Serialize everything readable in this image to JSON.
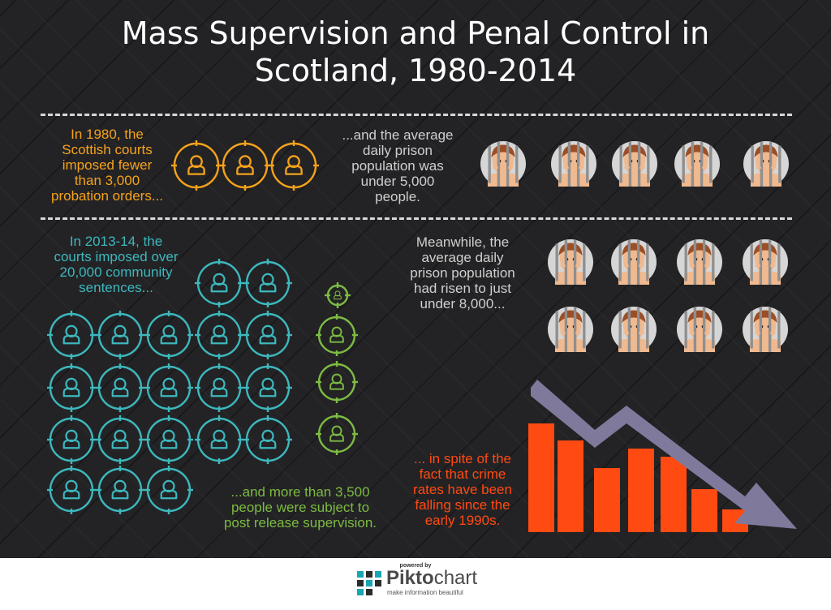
{
  "title": {
    "line1": "Mass Supervision and Penal Control in",
    "line2": "Scotland, 1980-2014"
  },
  "block_1980": {
    "line1": "In 1980, the",
    "line2": "Scottish courts",
    "line3": "imposed fewer",
    "line4": "than  3,000",
    "line5": "probation orders..."
  },
  "block_prison_1980": {
    "line1": "...and the average",
    "line2": "daily prison",
    "line3": "population was",
    "line4": "under 5,000",
    "line5": "people."
  },
  "block_2013": {
    "line1": "In 2013-14, the",
    "line2": "courts imposed over",
    "line3": "20,000 community",
    "line4": "sentences..."
  },
  "block_prison_2013": {
    "line1": "Meanwhile, the",
    "line2": "average daily",
    "line3": "prison population",
    "line4": "had risen to just",
    "line5": "under 8,000..."
  },
  "block_release": {
    "line1": "...and more than 3,500",
    "line2": "people were subject to",
    "line3": "post release supervision."
  },
  "block_crime": {
    "line1": "... in spite of the",
    "line2": "fact that crime",
    "line3": "rates have been",
    "line4": "falling since the",
    "line5": "early 1990s."
  },
  "icons": {
    "person": "person-in-crosshair-icon",
    "prisoner": "prisoner-behind-bars-icon",
    "trend": "falling-bar-chart-with-down-arrow-icon"
  },
  "colors": {
    "background": "#232325",
    "probation": "#f5a21b",
    "community": "#3db8bd",
    "release": "#7dbb42",
    "crime": "#ff4a12",
    "arrow": "#7f7a9c"
  },
  "footer": {
    "powered_by": "powered by",
    "brand_part1": "Pikto",
    "brand_part2": "chart",
    "tagline": "make information beautiful"
  }
}
